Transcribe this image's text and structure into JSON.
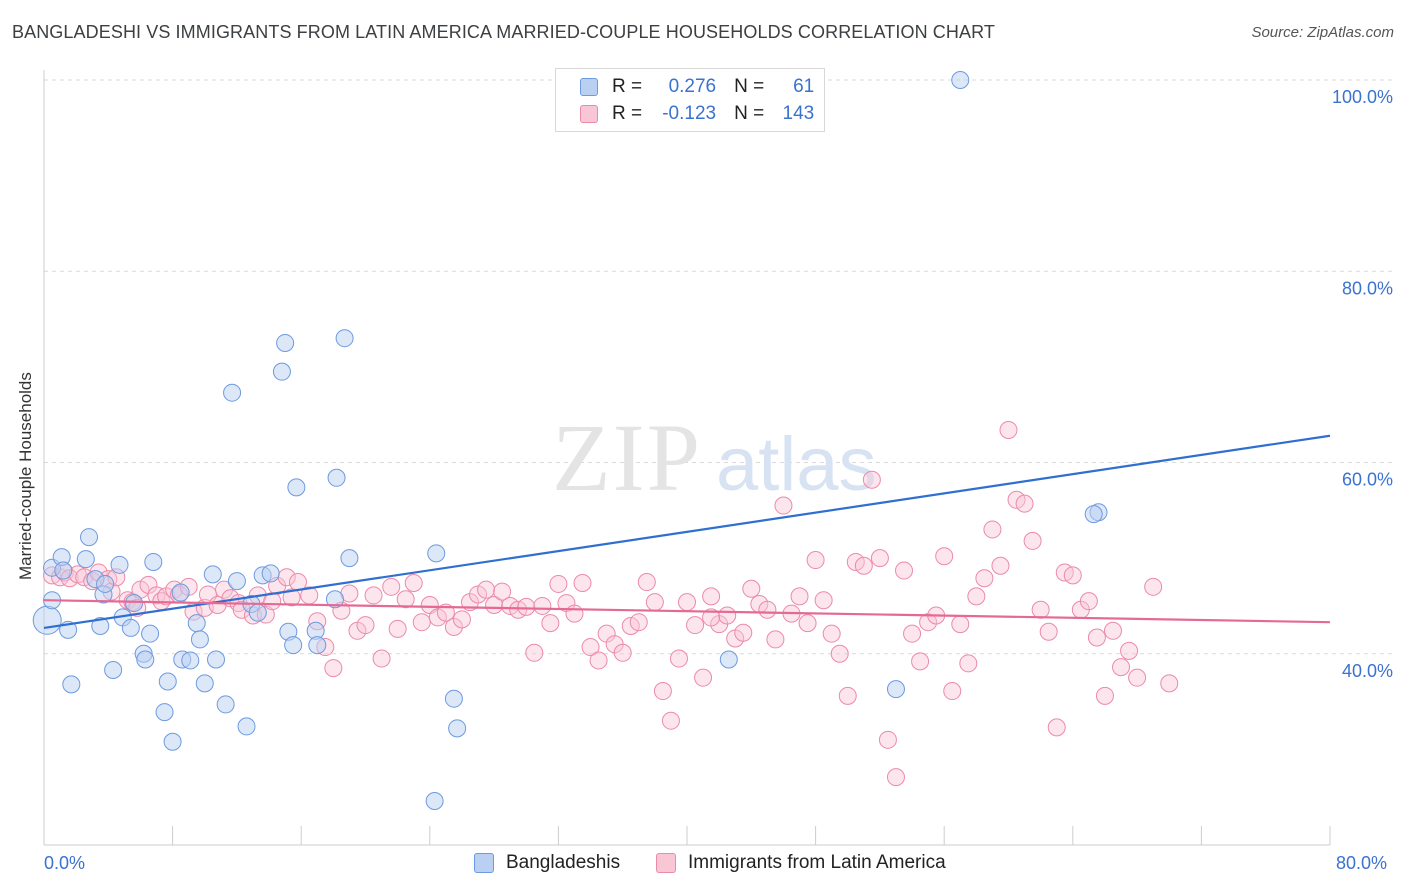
{
  "title": "BANGLADESHI VS IMMIGRANTS FROM LATIN AMERICA MARRIED-COUPLE HOUSEHOLDS CORRELATION CHART",
  "source": "Source: ZipAtlas.com",
  "watermark": {
    "zip": "ZIP",
    "atlas": "atlas"
  },
  "legend": {
    "series1": {
      "r_label": "R =",
      "r_value": "0.276",
      "n_label": "N =",
      "n_value": "61"
    },
    "series2": {
      "r_label": "R =",
      "r_value": "-0.123",
      "n_label": "N =",
      "n_value": "143"
    }
  },
  "colors": {
    "blue_fill": "#b9d0f2",
    "blue_stroke": "#6d9ae0",
    "blue_line": "#2f6fd0",
    "pink_fill": "#f9c6d6",
    "pink_stroke": "#ec8aa9",
    "pink_line": "#e46a95",
    "axis_text": "#3a72d0",
    "grid": "#d9d9d9"
  },
  "chart_data": {
    "type": "scatter",
    "title": "BANGLADESHI VS IMMIGRANTS FROM LATIN AMERICA MARRIED-COUPLE HOUSEHOLDS CORRELATION CHART",
    "xlabel": "",
    "ylabel": "Married-couple Households",
    "xlim": [
      0,
      80
    ],
    "ylim": [
      20,
      102
    ],
    "x_tick_labels": [
      "0.0%",
      "80.0%"
    ],
    "y_ticks": [
      40,
      60,
      80,
      100
    ],
    "y_tick_labels": [
      "40.0%",
      "60.0%",
      "80.0%",
      "100.0%"
    ],
    "legend_position": "top-center",
    "series": [
      {
        "name": "Bangladeshis",
        "r": 0.276,
        "n": 61,
        "trend": {
          "x": [
            0,
            80
          ],
          "y": [
            42.7,
            62.8
          ]
        },
        "points": [
          [
            0.2,
            43.5
          ],
          [
            0.5,
            45.6
          ],
          [
            0.5,
            49.0
          ],
          [
            1.1,
            50.1
          ],
          [
            1.2,
            48.7
          ],
          [
            1.5,
            42.5
          ],
          [
            1.7,
            36.8
          ],
          [
            2.6,
            49.9
          ],
          [
            2.8,
            52.2
          ],
          [
            3.2,
            47.8
          ],
          [
            3.5,
            42.9
          ],
          [
            3.7,
            46.2
          ],
          [
            3.8,
            47.3
          ],
          [
            4.3,
            38.3
          ],
          [
            4.7,
            49.3
          ],
          [
            4.9,
            43.8
          ],
          [
            5.4,
            42.7
          ],
          [
            5.6,
            45.3
          ],
          [
            6.2,
            40.0
          ],
          [
            6.3,
            39.4
          ],
          [
            6.6,
            42.1
          ],
          [
            6.8,
            49.6
          ],
          [
            7.5,
            33.9
          ],
          [
            7.7,
            37.1
          ],
          [
            8.0,
            30.8
          ],
          [
            8.5,
            46.4
          ],
          [
            8.6,
            39.4
          ],
          [
            9.1,
            39.3
          ],
          [
            9.5,
            43.2
          ],
          [
            9.7,
            41.5
          ],
          [
            10.5,
            48.3
          ],
          [
            10.0,
            36.9
          ],
          [
            10.7,
            39.4
          ],
          [
            11.3,
            34.7
          ],
          [
            11.7,
            67.3
          ],
          [
            12.0,
            47.6
          ],
          [
            12.6,
            32.4
          ],
          [
            12.9,
            45.2
          ],
          [
            13.3,
            44.3
          ],
          [
            13.6,
            48.2
          ],
          [
            14.1,
            48.4
          ],
          [
            14.8,
            69.5
          ],
          [
            15.0,
            72.5
          ],
          [
            15.2,
            42.3
          ],
          [
            15.5,
            40.9
          ],
          [
            15.7,
            57.4
          ],
          [
            16.9,
            42.4
          ],
          [
            17.0,
            40.9
          ],
          [
            18.1,
            45.7
          ],
          [
            18.2,
            58.4
          ],
          [
            18.7,
            73.0
          ],
          [
            19.0,
            50.0
          ],
          [
            24.4,
            50.5
          ],
          [
            25.5,
            35.3
          ],
          [
            25.7,
            32.2
          ],
          [
            24.3,
            24.6
          ],
          [
            42.6,
            39.4
          ],
          [
            53.0,
            36.3
          ],
          [
            57.0,
            100.0
          ],
          [
            65.6,
            54.8
          ],
          [
            65.3,
            54.6
          ]
        ]
      },
      {
        "name": "Immigrants from Latin America",
        "r": -0.123,
        "n": 143,
        "trend": {
          "x": [
            0,
            80
          ],
          "y": [
            45.6,
            43.3
          ]
        },
        "points": [
          [
            0.5,
            48.2
          ],
          [
            1.0,
            48.0
          ],
          [
            1.3,
            48.5
          ],
          [
            1.6,
            47.9
          ],
          [
            2.1,
            48.3
          ],
          [
            2.5,
            48.0
          ],
          [
            3.0,
            47.6
          ],
          [
            3.4,
            48.5
          ],
          [
            4.0,
            47.8
          ],
          [
            4.2,
            46.5
          ],
          [
            4.5,
            48.0
          ],
          [
            5.2,
            45.6
          ],
          [
            5.5,
            45.4
          ],
          [
            5.8,
            44.8
          ],
          [
            6.0,
            46.7
          ],
          [
            6.5,
            47.2
          ],
          [
            7.0,
            46.1
          ],
          [
            7.3,
            45.5
          ],
          [
            7.6,
            46.0
          ],
          [
            8.1,
            46.7
          ],
          [
            8.4,
            46.2
          ],
          [
            9.0,
            47.0
          ],
          [
            9.3,
            44.4
          ],
          [
            10.0,
            44.8
          ],
          [
            10.2,
            46.2
          ],
          [
            10.8,
            45.1
          ],
          [
            11.2,
            46.7
          ],
          [
            11.6,
            45.8
          ],
          [
            12.1,
            45.3
          ],
          [
            12.3,
            44.6
          ],
          [
            13.0,
            44.0
          ],
          [
            13.3,
            46.1
          ],
          [
            13.8,
            44.1
          ],
          [
            14.2,
            45.5
          ],
          [
            14.5,
            47.1
          ],
          [
            15.1,
            48.0
          ],
          [
            15.4,
            45.9
          ],
          [
            15.8,
            47.5
          ],
          [
            16.5,
            46.1
          ],
          [
            17.0,
            43.4
          ],
          [
            17.5,
            40.7
          ],
          [
            18.0,
            38.5
          ],
          [
            18.5,
            44.5
          ],
          [
            19.0,
            46.3
          ],
          [
            19.5,
            42.4
          ],
          [
            20.0,
            43.0
          ],
          [
            20.5,
            46.1
          ],
          [
            21.0,
            39.5
          ],
          [
            21.6,
            47.0
          ],
          [
            22.0,
            42.6
          ],
          [
            22.5,
            45.7
          ],
          [
            23.0,
            47.4
          ],
          [
            23.5,
            43.3
          ],
          [
            24.0,
            45.1
          ],
          [
            24.5,
            43.8
          ],
          [
            25.0,
            44.3
          ],
          [
            25.5,
            42.8
          ],
          [
            26.0,
            43.6
          ],
          [
            26.5,
            45.4
          ],
          [
            27.0,
            46.2
          ],
          [
            27.5,
            46.7
          ],
          [
            28.0,
            45.1
          ],
          [
            28.5,
            46.5
          ],
          [
            29.0,
            45.0
          ],
          [
            29.5,
            44.6
          ],
          [
            30.0,
            44.9
          ],
          [
            30.5,
            40.1
          ],
          [
            31.0,
            45.0
          ],
          [
            31.5,
            43.2
          ],
          [
            32.0,
            47.3
          ],
          [
            32.5,
            45.3
          ],
          [
            33.0,
            44.2
          ],
          [
            33.5,
            47.4
          ],
          [
            34.0,
            40.7
          ],
          [
            34.5,
            39.3
          ],
          [
            35.0,
            42.1
          ],
          [
            35.5,
            41.0
          ],
          [
            36.0,
            40.1
          ],
          [
            36.5,
            42.9
          ],
          [
            37.0,
            43.3
          ],
          [
            37.5,
            47.5
          ],
          [
            38.0,
            45.4
          ],
          [
            38.5,
            36.1
          ],
          [
            39.0,
            33.0
          ],
          [
            39.5,
            39.5
          ],
          [
            40.0,
            45.4
          ],
          [
            40.5,
            43.0
          ],
          [
            41.0,
            37.5
          ],
          [
            41.5,
            46.0
          ],
          [
            42.0,
            43.1
          ],
          [
            42.5,
            44.0
          ],
          [
            43.0,
            41.6
          ],
          [
            43.5,
            42.2
          ],
          [
            44.0,
            46.8
          ],
          [
            44.5,
            45.2
          ],
          [
            45.0,
            44.6
          ],
          [
            45.5,
            41.5
          ],
          [
            46.0,
            55.5
          ],
          [
            46.5,
            44.2
          ],
          [
            47.0,
            46.0
          ],
          [
            47.5,
            43.2
          ],
          [
            48.0,
            49.8
          ],
          [
            48.5,
            45.6
          ],
          [
            49.0,
            42.1
          ],
          [
            49.5,
            40.0
          ],
          [
            50.0,
            35.6
          ],
          [
            50.5,
            49.6
          ],
          [
            51.0,
            49.2
          ],
          [
            51.5,
            58.2
          ],
          [
            52.0,
            50.0
          ],
          [
            52.5,
            31.0
          ],
          [
            53.0,
            27.1
          ],
          [
            53.5,
            48.7
          ],
          [
            54.0,
            42.1
          ],
          [
            54.5,
            39.2
          ],
          [
            55.0,
            43.3
          ],
          [
            55.5,
            44.0
          ],
          [
            56.0,
            50.2
          ],
          [
            56.5,
            36.1
          ],
          [
            57.0,
            43.1
          ],
          [
            57.5,
            39.0
          ],
          [
            58.0,
            46.0
          ],
          [
            58.5,
            47.9
          ],
          [
            59.0,
            53.0
          ],
          [
            59.5,
            49.2
          ],
          [
            60.0,
            63.4
          ],
          [
            60.5,
            56.1
          ],
          [
            61.0,
            55.7
          ],
          [
            61.5,
            51.8
          ],
          [
            62.0,
            44.6
          ],
          [
            62.5,
            42.3
          ],
          [
            63.0,
            32.3
          ],
          [
            63.5,
            48.5
          ],
          [
            64.0,
            48.2
          ],
          [
            64.5,
            44.6
          ],
          [
            65.0,
            45.5
          ],
          [
            65.5,
            41.7
          ],
          [
            66.0,
            35.6
          ],
          [
            66.5,
            42.4
          ],
          [
            67.0,
            38.6
          ],
          [
            67.5,
            40.3
          ],
          [
            68.0,
            37.5
          ],
          [
            69.0,
            47.0
          ],
          [
            70.0,
            36.9
          ],
          [
            41.5,
            43.8
          ]
        ]
      }
    ]
  }
}
